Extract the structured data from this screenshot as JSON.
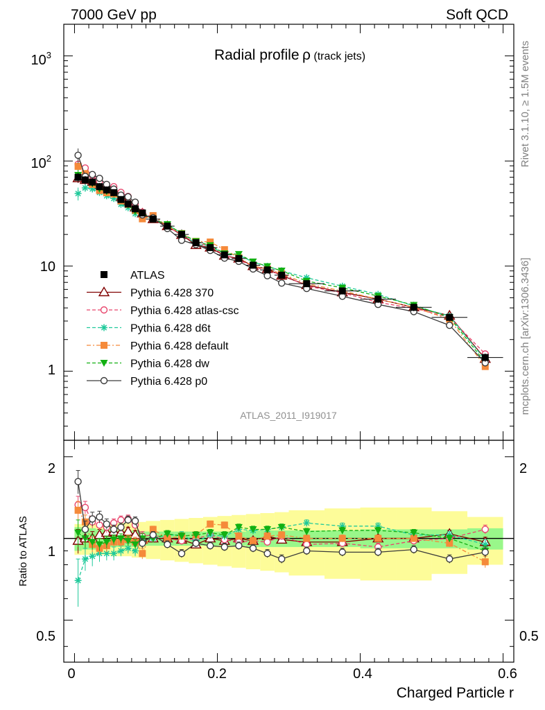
{
  "header": {
    "left": "7000 GeV pp",
    "right": "Soft QCD"
  },
  "title": {
    "main": "Radial profile",
    "symbol": "ρ",
    "sub": "(track jets)"
  },
  "side": {
    "rivet": "Rivet 3.1.10, ≥ 1.5M events",
    "mcplots": "mcplots.cern.ch [arXiv:1306.3436]"
  },
  "analysis_id": "ATLAS_2011_I919017",
  "axes": {
    "xlabel": "Charged Particle r",
    "ratio_ylabel": "Ratio to ATLAS",
    "top_ytick_labels": [
      "1",
      "10",
      "10",
      "10"
    ],
    "top_ytick_exponents": [
      "",
      "",
      "2",
      "3"
    ],
    "ratio_ytick_labels": [
      "0.5",
      "1",
      "2"
    ],
    "xtick_labels": [
      "0",
      "0.2",
      "0.4",
      "0.6"
    ]
  },
  "chart_data": {
    "type": "scatter",
    "xlim": [
      -0.015,
      0.615
    ],
    "ylim_top": [
      0.22,
      2000
    ],
    "ylog_top": true,
    "ylim_ratio": [
      0.35,
      2.3
    ],
    "ylog_ratio": true,
    "legend_position": "middle-left",
    "x": [
      0.005,
      0.015,
      0.025,
      0.035,
      0.045,
      0.055,
      0.065,
      0.075,
      0.085,
      0.095,
      0.11,
      0.13,
      0.15,
      0.17,
      0.19,
      0.21,
      0.23,
      0.25,
      0.27,
      0.29,
      0.325,
      0.375,
      0.425,
      0.475,
      0.525,
      0.575
    ],
    "xerr": [
      0.005,
      0.005,
      0.005,
      0.005,
      0.005,
      0.005,
      0.005,
      0.005,
      0.005,
      0.005,
      0.01,
      0.01,
      0.01,
      0.01,
      0.01,
      0.01,
      0.01,
      0.01,
      0.01,
      0.01,
      0.025,
      0.025,
      0.025,
      0.025,
      0.025,
      0.025
    ],
    "data": {
      "name": "ATLAS",
      "values": [
        70,
        66,
        63,
        57,
        53,
        50,
        43,
        39,
        35,
        32,
        28,
        24,
        20,
        16.7,
        15,
        12.8,
        11.8,
        10.2,
        9.2,
        8.2,
        6.8,
        5.8,
        4.85,
        4.05,
        3.25,
        1.35
      ],
      "band_stat": [
        0.1,
        0.09,
        0.09,
        0.08,
        0.08,
        0.07,
        0.07,
        0.07,
        0.07,
        0.06,
        0.06,
        0.06,
        0.06,
        0.06,
        0.06,
        0.06,
        0.06,
        0.07,
        0.07,
        0.07,
        0.07,
        0.07,
        0.08,
        0.08,
        0.08,
        0.09
      ],
      "band_total": [
        0.13,
        0.13,
        0.13,
        0.13,
        0.13,
        0.14,
        0.14,
        0.14,
        0.15,
        0.15,
        0.16,
        0.17,
        0.18,
        0.19,
        0.2,
        0.21,
        0.22,
        0.23,
        0.24,
        0.25,
        0.27,
        0.29,
        0.3,
        0.3,
        0.26,
        0.2
      ]
    },
    "series": [
      {
        "name": "Pythia 6.428 370",
        "color": "#800000",
        "dash": "",
        "marker": "triangle-open",
        "ratio": [
          0.98,
          1.0,
          1.0,
          1.03,
          1.05,
          1.06,
          1.05,
          1.06,
          1.03,
          0.99,
          1.0,
          1.0,
          0.99,
          0.95,
          1.0,
          0.98,
          1.0,
          0.98,
          1.02,
          0.99,
          0.97,
          0.97,
          1.0,
          1.0,
          1.04,
          0.97
        ],
        "ratio_err": [
          0.1,
          0.07,
          0.06,
          0.05,
          0.05,
          0.04,
          0.04,
          0.04,
          0.04,
          0.04,
          0.03,
          0.03,
          0.03,
          0.03,
          0.03,
          0.03,
          0.03,
          0.03,
          0.03,
          0.03,
          0.03,
          0.03,
          0.03,
          0.03,
          0.03,
          0.04
        ]
      },
      {
        "name": "Pythia 6.428 atlas-csc",
        "color": "#e8456c",
        "dash": "5,3",
        "marker": "circle-open",
        "ratio": [
          1.33,
          1.3,
          1.15,
          1.12,
          1.1,
          1.14,
          1.17,
          1.18,
          1.12,
          1.02,
          1.03,
          1.0,
          0.98,
          1.0,
          1.03,
          0.99,
          0.97,
          0.98,
          0.97,
          1.02,
          0.95,
          0.96,
          0.93,
          0.98,
          1.0,
          1.08
        ],
        "ratio_err": [
          0.1,
          0.07,
          0.06,
          0.05,
          0.05,
          0.04,
          0.04,
          0.04,
          0.04,
          0.04,
          0.03,
          0.03,
          0.03,
          0.03,
          0.03,
          0.03,
          0.03,
          0.03,
          0.03,
          0.03,
          0.03,
          0.03,
          0.03,
          0.03,
          0.03,
          0.04
        ]
      },
      {
        "name": "Pythia 6.428 d6t",
        "color": "#1ec99a",
        "dash": "5,3",
        "marker": "star",
        "ratio": [
          0.7,
          0.84,
          0.86,
          0.88,
          0.88,
          0.88,
          0.9,
          0.92,
          0.9,
          0.98,
          1.0,
          1.03,
          1.03,
          0.97,
          1.03,
          1.02,
          1.08,
          1.07,
          1.08,
          1.1,
          1.14,
          1.11,
          1.11,
          1.03,
          1.03,
          0.95
        ],
        "ratio_err": [
          0.14,
          0.08,
          0.07,
          0.06,
          0.05,
          0.05,
          0.04,
          0.04,
          0.04,
          0.04,
          0.03,
          0.03,
          0.03,
          0.03,
          0.03,
          0.03,
          0.03,
          0.03,
          0.03,
          0.03,
          0.03,
          0.03,
          0.03,
          0.03,
          0.03,
          0.04
        ]
      },
      {
        "name": "Pythia 6.428 default",
        "color": "#f58a3a",
        "dash": "6,3,2,3",
        "marker": "square",
        "ratio": [
          1.27,
          1.15,
          0.95,
          0.92,
          0.94,
          0.97,
          0.97,
          0.99,
          0.97,
          0.88,
          1.08,
          1.0,
          1.02,
          1.03,
          1.13,
          1.12,
          1.02,
          0.98,
          1.02,
          1.03,
          1.0,
          1.0,
          1.0,
          1.0,
          0.96,
          0.82
        ],
        "ratio_err": [
          0.1,
          0.07,
          0.06,
          0.05,
          0.05,
          0.04,
          0.04,
          0.04,
          0.04,
          0.04,
          0.03,
          0.03,
          0.03,
          0.03,
          0.03,
          0.03,
          0.03,
          0.03,
          0.03,
          0.03,
          0.03,
          0.03,
          0.03,
          0.03,
          0.03,
          0.04
        ]
      },
      {
        "name": "Pythia 6.428 dw",
        "color": "#12b012",
        "dash": "5,3",
        "marker": "triangle-down",
        "ratio": [
          1.05,
          1.0,
          0.97,
          0.95,
          0.97,
          0.99,
          1.0,
          0.98,
          0.95,
          1.0,
          1.0,
          1.04,
          1.02,
          1.03,
          1.05,
          1.03,
          1.1,
          1.08,
          1.08,
          1.1,
          1.06,
          1.07,
          1.07,
          1.05,
          1.0,
          0.9
        ],
        "ratio_err": [
          0.12,
          0.08,
          0.06,
          0.05,
          0.05,
          0.04,
          0.04,
          0.04,
          0.04,
          0.04,
          0.03,
          0.03,
          0.03,
          0.03,
          0.03,
          0.03,
          0.03,
          0.03,
          0.03,
          0.03,
          0.03,
          0.03,
          0.03,
          0.03,
          0.03,
          0.04
        ]
      },
      {
        "name": "Pythia 6.428 p0",
        "color": "#3a3a3a",
        "dash": "",
        "marker": "circle-open",
        "ratio": [
          1.62,
          1.08,
          1.18,
          1.2,
          1.13,
          1.08,
          1.1,
          1.17,
          1.16,
          0.96,
          1.03,
          0.95,
          0.88,
          0.96,
          0.94,
          0.93,
          0.94,
          0.92,
          0.88,
          0.84,
          0.9,
          0.89,
          0.89,
          0.91,
          0.84,
          0.89
        ],
        "ratio_err": [
          0.16,
          0.08,
          0.07,
          0.06,
          0.05,
          0.04,
          0.04,
          0.04,
          0.04,
          0.04,
          0.03,
          0.03,
          0.03,
          0.03,
          0.03,
          0.03,
          0.03,
          0.03,
          0.03,
          0.03,
          0.03,
          0.03,
          0.03,
          0.03,
          0.03,
          0.04
        ]
      }
    ],
    "band_colors": {
      "stat": "#99f78a",
      "total": "#fdfc99"
    }
  }
}
